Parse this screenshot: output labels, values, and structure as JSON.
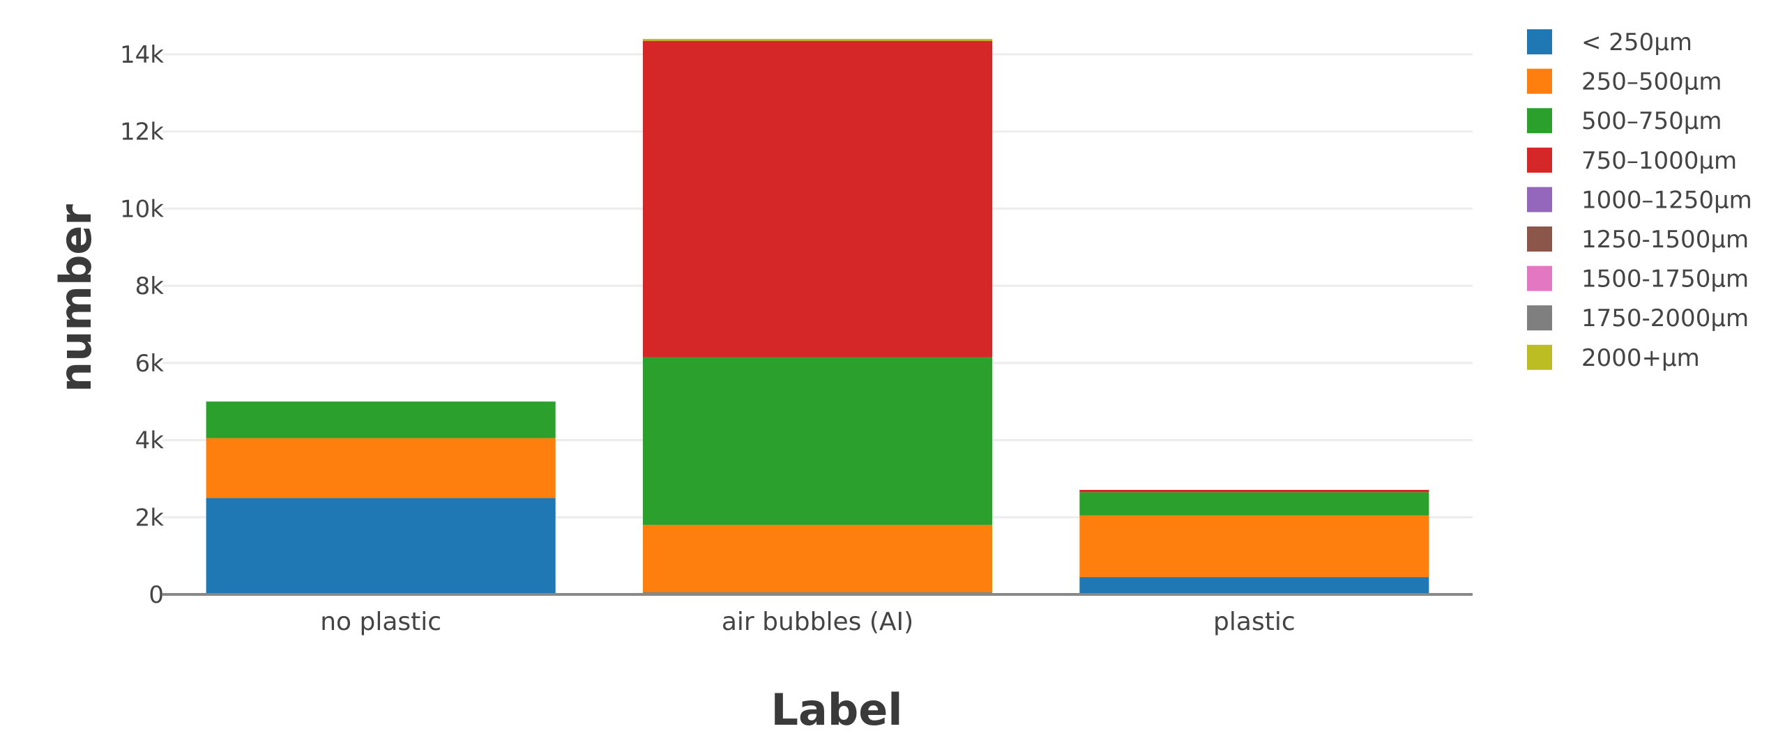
{
  "chart_data": {
    "type": "bar",
    "stacked": true,
    "title": "",
    "xlabel": "Label",
    "ylabel": "number",
    "ylim": [
      0,
      14500
    ],
    "yticks": [
      0,
      2000,
      4000,
      6000,
      8000,
      10000,
      12000,
      14000
    ],
    "ytick_labels": [
      "0",
      "2k",
      "4k",
      "6k",
      "8k",
      "10k",
      "12k",
      "14k"
    ],
    "grid": true,
    "legend_position": "top-right",
    "categories": [
      "no plastic",
      "air bubbles (AI)",
      "plastic"
    ],
    "series": [
      {
        "name": "< 250µm",
        "color": "#1f77b4",
        "values": [
          2500,
          50,
          450
        ]
      },
      {
        "name": "250–500µm",
        "color": "#ff7f0e",
        "values": [
          1550,
          1750,
          1600
        ]
      },
      {
        "name": "500–750µm",
        "color": "#2ca02c",
        "values": [
          950,
          4350,
          600
        ]
      },
      {
        "name": "750–1000µm",
        "color": "#d62728",
        "values": [
          0,
          8200,
          60
        ]
      },
      {
        "name": "1000–1250µm",
        "color": "#9467bd",
        "values": [
          0,
          0,
          0
        ]
      },
      {
        "name": "1250-1500µm",
        "color": "#8c564b",
        "values": [
          0,
          0,
          0
        ]
      },
      {
        "name": "1500-1750µm",
        "color": "#e377c2",
        "values": [
          0,
          0,
          0
        ]
      },
      {
        "name": "1750-2000µm",
        "color": "#7f7f7f",
        "values": [
          0,
          0,
          0
        ]
      },
      {
        "name": "2000+µm",
        "color": "#bcbd22",
        "values": [
          0,
          50,
          0
        ]
      }
    ]
  }
}
